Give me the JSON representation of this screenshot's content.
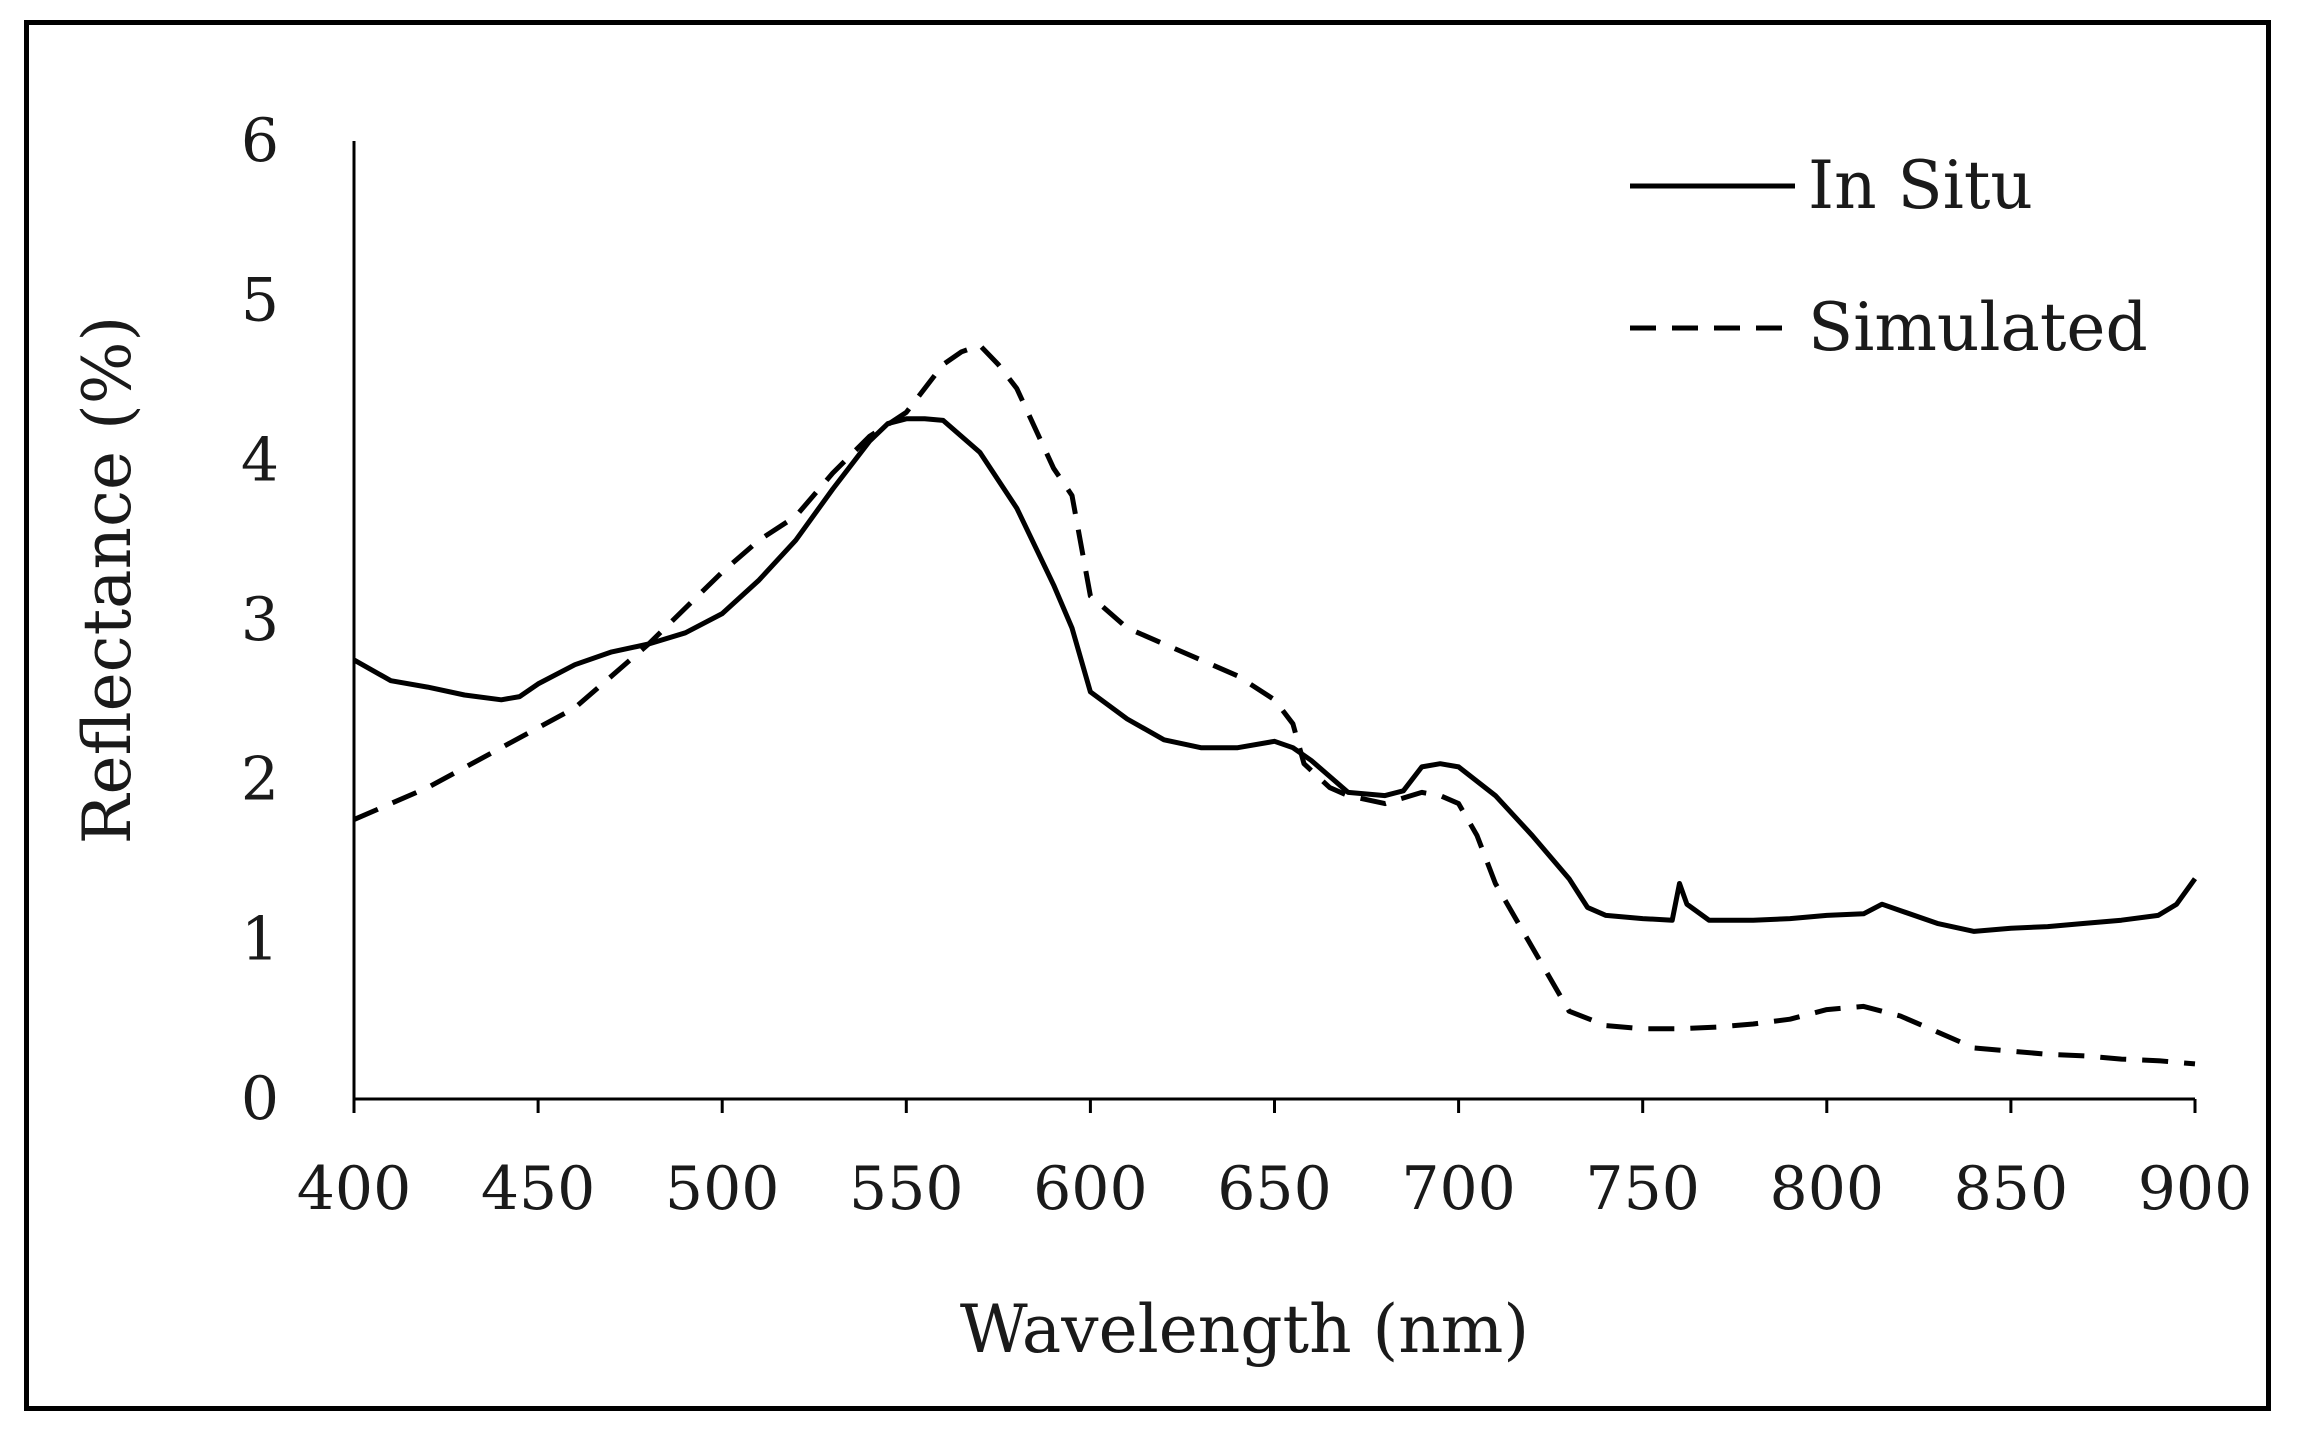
{
  "chart_data": {
    "type": "line",
    "title": "",
    "xlabel": "Wavelength  (nm)",
    "ylabel": "Reflectance  (%)",
    "xlim": [
      400,
      900
    ],
    "ylim": [
      0,
      6
    ],
    "xticks": [
      400,
      450,
      500,
      550,
      600,
      650,
      700,
      750,
      800,
      850,
      900
    ],
    "yticks": [
      0,
      1,
      2,
      3,
      4,
      5,
      6
    ],
    "grid": false,
    "legend_position": "top-right",
    "series": [
      {
        "name": "In Situ",
        "style": "solid",
        "color": "#000000",
        "x": [
          400,
          410,
          420,
          430,
          440,
          445,
          450,
          460,
          470,
          480,
          490,
          500,
          510,
          520,
          530,
          540,
          545,
          550,
          555,
          560,
          570,
          580,
          590,
          595,
          600,
          610,
          620,
          630,
          640,
          650,
          655,
          660,
          670,
          680,
          685,
          690,
          695,
          700,
          710,
          720,
          730,
          735,
          740,
          750,
          758,
          760,
          762,
          768,
          780,
          790,
          800,
          810,
          815,
          820,
          830,
          840,
          850,
          860,
          870,
          880,
          890,
          895,
          900
        ],
        "values": [
          2.75,
          2.62,
          2.58,
          2.53,
          2.5,
          2.52,
          2.6,
          2.72,
          2.8,
          2.85,
          2.92,
          3.04,
          3.25,
          3.5,
          3.82,
          4.12,
          4.23,
          4.26,
          4.26,
          4.25,
          4.05,
          3.7,
          3.22,
          2.95,
          2.55,
          2.38,
          2.25,
          2.2,
          2.2,
          2.24,
          2.2,
          2.12,
          1.92,
          1.9,
          1.93,
          2.08,
          2.1,
          2.08,
          1.9,
          1.65,
          1.38,
          1.2,
          1.15,
          1.13,
          1.12,
          1.35,
          1.22,
          1.12,
          1.12,
          1.13,
          1.15,
          1.16,
          1.22,
          1.18,
          1.1,
          1.05,
          1.07,
          1.08,
          1.1,
          1.12,
          1.15,
          1.22,
          1.38
        ]
      },
      {
        "name": "Simulated",
        "style": "dashed",
        "color": "#000000",
        "x": [
          400,
          420,
          440,
          460,
          480,
          500,
          510,
          520,
          530,
          540,
          550,
          560,
          565,
          570,
          575,
          580,
          590,
          595,
          600,
          610,
          620,
          630,
          640,
          650,
          655,
          658,
          665,
          670,
          680,
          690,
          695,
          700,
          705,
          710,
          720,
          730,
          740,
          750,
          760,
          770,
          780,
          790,
          800,
          810,
          820,
          830,
          840,
          850,
          860,
          870,
          880,
          890,
          900
        ],
        "values": [
          1.75,
          1.95,
          2.2,
          2.45,
          2.85,
          3.3,
          3.5,
          3.65,
          3.92,
          4.15,
          4.3,
          4.6,
          4.68,
          4.72,
          4.6,
          4.45,
          3.95,
          3.78,
          3.15,
          2.95,
          2.85,
          2.75,
          2.65,
          2.5,
          2.35,
          2.1,
          1.95,
          1.9,
          1.85,
          1.92,
          1.9,
          1.85,
          1.65,
          1.35,
          0.95,
          0.55,
          0.46,
          0.44,
          0.44,
          0.45,
          0.47,
          0.5,
          0.56,
          0.58,
          0.52,
          0.42,
          0.32,
          0.3,
          0.28,
          0.27,
          0.25,
          0.24,
          0.22
        ]
      }
    ]
  }
}
